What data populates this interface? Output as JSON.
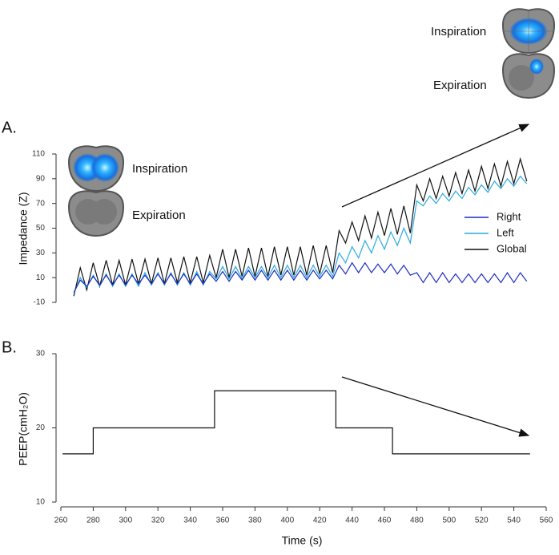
{
  "chart_data": [
    {
      "type": "line",
      "panel_label": "A.",
      "ylabel": "Impedance (Z)",
      "annotations": [
        "Inspiration",
        "Expiration"
      ],
      "xlim": [
        260,
        560
      ],
      "ylim": [
        -10,
        110
      ],
      "yticks": [
        -10,
        10,
        30,
        50,
        70,
        90,
        110
      ],
      "legend": "right",
      "x": [
        268,
        272,
        276,
        280,
        284,
        288,
        292,
        296,
        300,
        304,
        308,
        312,
        316,
        320,
        324,
        328,
        332,
        336,
        340,
        344,
        348,
        352,
        356,
        360,
        364,
        368,
        372,
        376,
        380,
        384,
        388,
        392,
        396,
        400,
        404,
        408,
        412,
        416,
        420,
        424,
        428,
        432,
        436,
        440,
        444,
        448,
        452,
        456,
        460,
        464,
        468,
        472,
        476,
        480,
        484,
        488,
        492,
        496,
        500,
        504,
        508,
        512,
        516,
        520,
        524,
        528,
        532,
        536,
        540,
        544,
        548
      ],
      "series": [
        {
          "name": "Right",
          "color": "#1f2fc0",
          "values": [
            -2,
            8,
            3,
            11,
            4,
            12,
            4,
            12,
            4,
            12,
            5,
            12,
            5,
            13,
            5,
            13,
            5,
            13,
            5,
            13,
            5,
            13,
            7,
            15,
            7,
            15,
            8,
            16,
            8,
            16,
            8,
            16,
            8,
            16,
            8,
            16,
            8,
            16,
            9,
            16,
            9,
            20,
            13,
            22,
            14,
            22,
            14,
            21,
            14,
            21,
            13,
            20,
            12,
            14,
            6,
            14,
            6,
            14,
            6,
            13,
            6,
            13,
            6,
            13,
            6,
            13,
            6,
            14,
            6,
            14,
            7
          ]
        },
        {
          "name": "Left",
          "color": "#2aaae2",
          "values": [
            -3,
            10,
            2,
            12,
            3,
            13,
            3,
            13,
            3,
            13,
            3,
            14,
            4,
            14,
            4,
            14,
            4,
            14,
            4,
            15,
            4,
            15,
            9,
            19,
            9,
            19,
            9,
            19,
            10,
            19,
            10,
            20,
            10,
            20,
            10,
            20,
            10,
            20,
            11,
            20,
            11,
            30,
            22,
            35,
            26,
            40,
            30,
            44,
            33,
            47,
            36,
            50,
            38,
            72,
            68,
            76,
            70,
            78,
            72,
            80,
            74,
            83,
            77,
            85,
            79,
            88,
            82,
            90,
            84,
            92,
            86
          ]
        },
        {
          "name": "Global",
          "color": "#111111",
          "values": [
            -5,
            18,
            0,
            22,
            3,
            24,
            4,
            24,
            4,
            25,
            5,
            25,
            5,
            26,
            5,
            26,
            6,
            27,
            6,
            27,
            6,
            28,
            10,
            33,
            10,
            33,
            11,
            34,
            11,
            34,
            11,
            35,
            12,
            35,
            12,
            35,
            12,
            36,
            13,
            36,
            14,
            48,
            38,
            55,
            40,
            60,
            42,
            63,
            44,
            66,
            45,
            68,
            46,
            85,
            72,
            90,
            74,
            92,
            76,
            95,
            78,
            97,
            80,
            100,
            82,
            102,
            84,
            104,
            86,
            106,
            88
          ]
        }
      ]
    },
    {
      "type": "line",
      "panel_label": "B.",
      "ylabel": "PEEP(cmH₂O)",
      "xlabel": "Time (s)",
      "xlim": [
        260,
        560
      ],
      "xticks": [
        260,
        280,
        300,
        320,
        340,
        360,
        380,
        400,
        420,
        440,
        460,
        480,
        500,
        520,
        540,
        560
      ],
      "ylim": [
        10,
        30
      ],
      "yticks": [
        10,
        20,
        30
      ],
      "x": [
        261,
        280,
        280,
        355,
        355,
        430,
        430,
        465,
        465,
        550
      ],
      "series": [
        {
          "color": "#111111",
          "values": [
            16.5,
            16.5,
            20,
            20,
            25,
            25,
            20,
            20,
            16.5,
            16.5
          ]
        }
      ]
    }
  ],
  "images": {
    "inspiration": "Inspiration",
    "expiration": "Expiration"
  }
}
